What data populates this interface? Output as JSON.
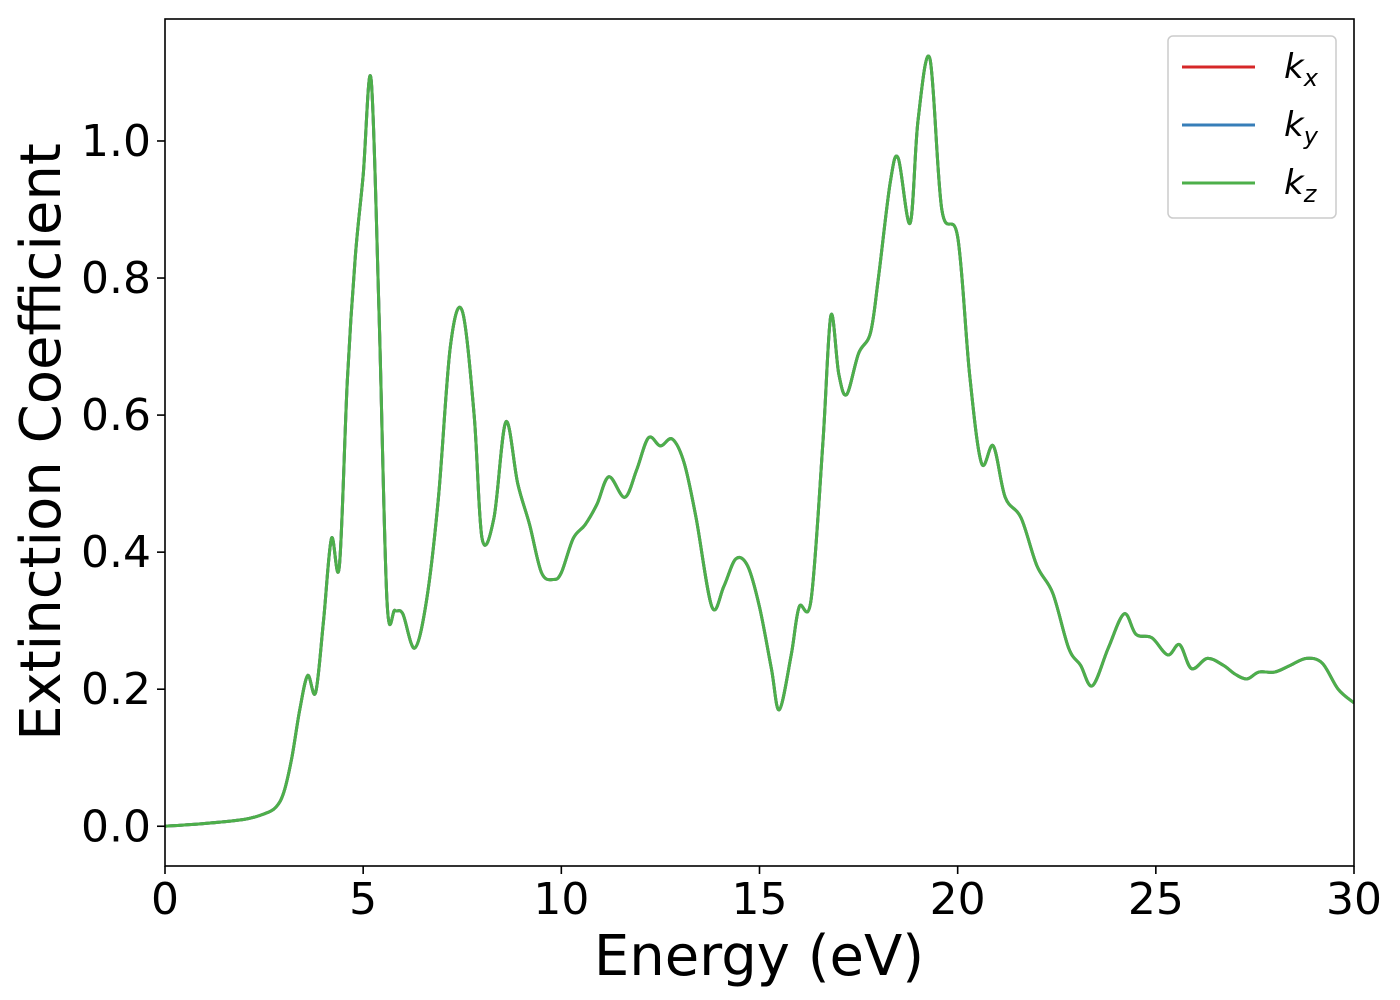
{
  "chart_data": {
    "type": "line",
    "xlabel": "Energy (eV)",
    "ylabel": "Extinction Coefficient",
    "xlim": [
      0,
      30
    ],
    "ylim": [
      -0.058,
      1.178
    ],
    "grid": false,
    "legend_position": "top-right",
    "xticks": [
      0,
      5,
      10,
      15,
      20,
      25,
      30
    ],
    "yticks": [
      0.0,
      0.2,
      0.4,
      0.6,
      0.8,
      1.0
    ],
    "xtick_labels": [
      "0",
      "5",
      "10",
      "15",
      "20",
      "25",
      "30"
    ],
    "ytick_labels": [
      "0.0",
      "0.2",
      "0.4",
      "0.6",
      "0.8",
      "1.0"
    ],
    "x": [
      0,
      1,
      2,
      2.5,
      2.8,
      3.0,
      3.2,
      3.4,
      3.6,
      3.8,
      4.0,
      4.2,
      4.4,
      4.6,
      4.8,
      5.0,
      5.2,
      5.4,
      5.6,
      5.8,
      6.0,
      6.3,
      6.6,
      6.9,
      7.2,
      7.5,
      7.8,
      8.0,
      8.3,
      8.6,
      8.9,
      9.2,
      9.5,
      9.8,
      10.0,
      10.3,
      10.6,
      10.9,
      11.2,
      11.6,
      11.9,
      12.2,
      12.5,
      12.8,
      13.1,
      13.4,
      13.8,
      14.1,
      14.4,
      14.7,
      15.0,
      15.3,
      15.5,
      15.8,
      16.0,
      16.3,
      16.6,
      16.8,
      17.0,
      17.2,
      17.5,
      17.8,
      18.0,
      18.3,
      18.5,
      18.8,
      19.0,
      19.3,
      19.6,
      20.0,
      20.3,
      20.6,
      20.9,
      21.2,
      21.6,
      22.0,
      22.4,
      22.8,
      23.1,
      23.4,
      23.8,
      24.2,
      24.5,
      24.9,
      25.3,
      25.6,
      25.9,
      26.3,
      26.7,
      27.0,
      27.3,
      27.6,
      28.0,
      28.4,
      28.8,
      29.2,
      29.6,
      30.0
    ],
    "series": [
      {
        "name": "k_x",
        "label_base": "k",
        "label_sub": "x",
        "color": "#d62728",
        "values": [
          0.0,
          0.004,
          0.01,
          0.018,
          0.028,
          0.05,
          0.1,
          0.17,
          0.22,
          0.195,
          0.3,
          0.42,
          0.38,
          0.65,
          0.83,
          0.95,
          1.09,
          0.75,
          0.33,
          0.315,
          0.31,
          0.26,
          0.33,
          0.48,
          0.7,
          0.752,
          0.6,
          0.42,
          0.45,
          0.59,
          0.5,
          0.44,
          0.37,
          0.36,
          0.37,
          0.42,
          0.44,
          0.47,
          0.51,
          0.48,
          0.52,
          0.567,
          0.555,
          0.565,
          0.53,
          0.45,
          0.32,
          0.35,
          0.39,
          0.38,
          0.32,
          0.23,
          0.17,
          0.25,
          0.32,
          0.33,
          0.56,
          0.745,
          0.66,
          0.63,
          0.69,
          0.72,
          0.8,
          0.94,
          0.975,
          0.88,
          1.03,
          1.12,
          0.9,
          0.86,
          0.66,
          0.53,
          0.555,
          0.48,
          0.45,
          0.38,
          0.34,
          0.26,
          0.235,
          0.205,
          0.26,
          0.31,
          0.28,
          0.275,
          0.25,
          0.265,
          0.23,
          0.245,
          0.235,
          0.222,
          0.215,
          0.225,
          0.225,
          0.235,
          0.245,
          0.238,
          0.2,
          0.18
        ]
      },
      {
        "name": "k_y",
        "label_base": "k",
        "label_sub": "y",
        "color": "#377eb8",
        "values": [
          0.0,
          0.004,
          0.01,
          0.018,
          0.028,
          0.05,
          0.1,
          0.17,
          0.22,
          0.195,
          0.3,
          0.42,
          0.38,
          0.65,
          0.83,
          0.95,
          1.09,
          0.75,
          0.33,
          0.315,
          0.31,
          0.26,
          0.33,
          0.48,
          0.7,
          0.752,
          0.6,
          0.42,
          0.45,
          0.59,
          0.5,
          0.44,
          0.37,
          0.36,
          0.37,
          0.42,
          0.44,
          0.47,
          0.51,
          0.48,
          0.52,
          0.567,
          0.555,
          0.565,
          0.53,
          0.45,
          0.32,
          0.35,
          0.39,
          0.38,
          0.32,
          0.23,
          0.17,
          0.25,
          0.32,
          0.33,
          0.56,
          0.745,
          0.66,
          0.63,
          0.69,
          0.72,
          0.8,
          0.94,
          0.975,
          0.88,
          1.03,
          1.12,
          0.9,
          0.86,
          0.66,
          0.53,
          0.555,
          0.48,
          0.45,
          0.38,
          0.34,
          0.26,
          0.235,
          0.205,
          0.26,
          0.31,
          0.28,
          0.275,
          0.25,
          0.265,
          0.23,
          0.245,
          0.235,
          0.222,
          0.215,
          0.225,
          0.225,
          0.235,
          0.245,
          0.238,
          0.2,
          0.18
        ]
      },
      {
        "name": "k_z",
        "label_base": "k",
        "label_sub": "z",
        "color": "#4daf4a",
        "values": [
          0.0,
          0.004,
          0.01,
          0.018,
          0.028,
          0.05,
          0.1,
          0.17,
          0.22,
          0.195,
          0.3,
          0.42,
          0.38,
          0.65,
          0.83,
          0.95,
          1.09,
          0.75,
          0.33,
          0.315,
          0.31,
          0.26,
          0.33,
          0.48,
          0.7,
          0.752,
          0.6,
          0.42,
          0.45,
          0.59,
          0.5,
          0.44,
          0.37,
          0.36,
          0.37,
          0.42,
          0.44,
          0.47,
          0.51,
          0.48,
          0.52,
          0.567,
          0.555,
          0.565,
          0.53,
          0.45,
          0.32,
          0.35,
          0.39,
          0.38,
          0.32,
          0.23,
          0.17,
          0.25,
          0.32,
          0.33,
          0.56,
          0.745,
          0.66,
          0.63,
          0.69,
          0.72,
          0.8,
          0.94,
          0.975,
          0.88,
          1.03,
          1.12,
          0.9,
          0.86,
          0.66,
          0.53,
          0.555,
          0.48,
          0.45,
          0.38,
          0.34,
          0.26,
          0.235,
          0.205,
          0.26,
          0.31,
          0.28,
          0.275,
          0.25,
          0.265,
          0.23,
          0.245,
          0.235,
          0.222,
          0.215,
          0.225,
          0.225,
          0.235,
          0.245,
          0.238,
          0.2,
          0.18
        ]
      }
    ]
  }
}
